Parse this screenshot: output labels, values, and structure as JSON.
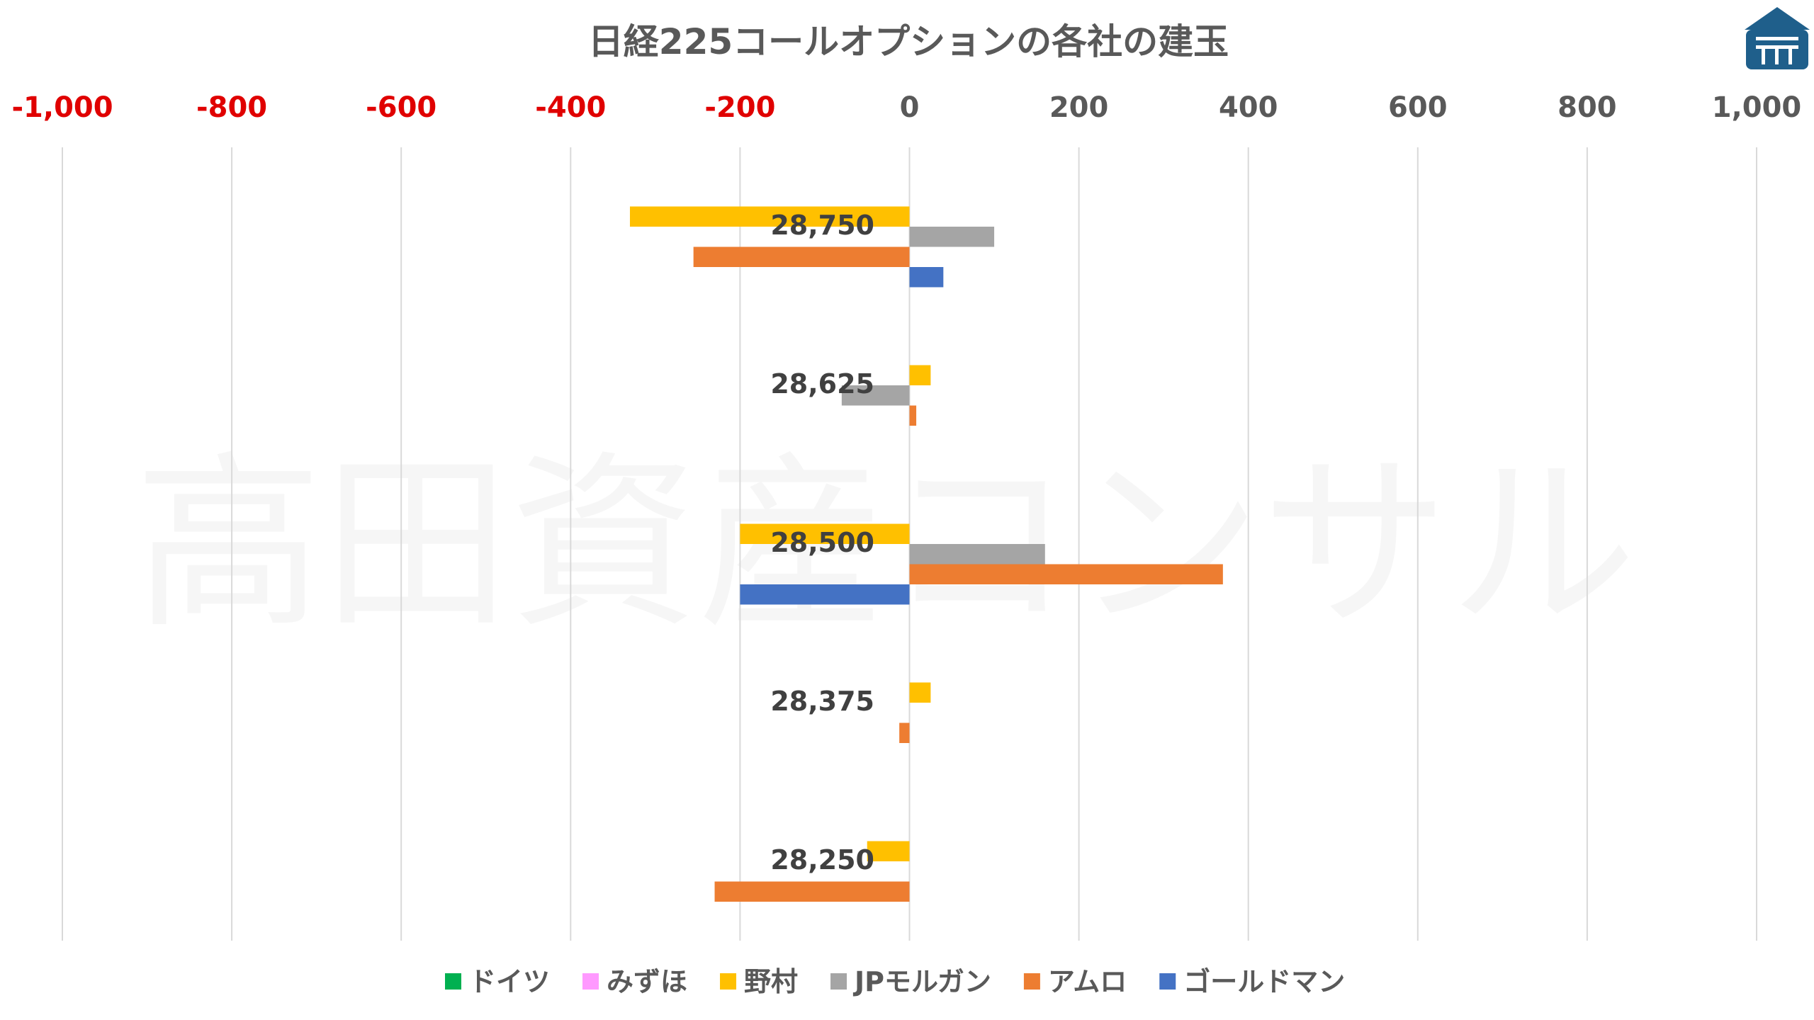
{
  "chart_data": {
    "type": "bar",
    "orientation": "horizontal",
    "title": "日経225コールオプションの各社の建玉",
    "xlabel": "",
    "ylabel": "",
    "xlim": [
      -1000,
      1000
    ],
    "x_ticks": [
      {
        "value": -1000,
        "label": "-1,000"
      },
      {
        "value": -800,
        "label": "-800"
      },
      {
        "value": -600,
        "label": "-600"
      },
      {
        "value": -400,
        "label": "-400"
      },
      {
        "value": -200,
        "label": "-200"
      },
      {
        "value": 0,
        "label": "0"
      },
      {
        "value": 200,
        "label": "200"
      },
      {
        "value": 400,
        "label": "400"
      },
      {
        "value": 600,
        "label": "600"
      },
      {
        "value": 800,
        "label": "800"
      },
      {
        "value": 1000,
        "label": "1,000"
      }
    ],
    "negative_tick_color": "#e00000",
    "positive_tick_color": "#595959",
    "grid": true,
    "legend_position": "bottom",
    "categories": [
      "28,750",
      "28,625",
      "28,500",
      "28,375",
      "28,250"
    ],
    "series": [
      {
        "name": "ドイツ",
        "color": "#00b050",
        "values": [
          0,
          0,
          0,
          0,
          0
        ]
      },
      {
        "name": "みずほ",
        "color": "#ff99ff",
        "values": [
          0,
          0,
          0,
          0,
          0
        ]
      },
      {
        "name": "野村",
        "color": "#ffc000",
        "values": [
          -330,
          25,
          -200,
          25,
          -50
        ]
      },
      {
        "name": "JPモルガン",
        "color": "#a5a5a5",
        "values": [
          100,
          -80,
          160,
          0,
          0
        ]
      },
      {
        "name": "アムロ",
        "color": "#ed7d31",
        "values": [
          -255,
          8,
          370,
          -12,
          -230
        ]
      },
      {
        "name": "ゴールドマン",
        "color": "#4472c4",
        "values": [
          40,
          0,
          -200,
          0,
          0
        ]
      }
    ]
  },
  "watermark": "高田資産コンサル",
  "logo_icon": "takada-house-logo-icon",
  "colors": {
    "grid": "#d9d9d9",
    "logo": "#1f5f8b"
  }
}
